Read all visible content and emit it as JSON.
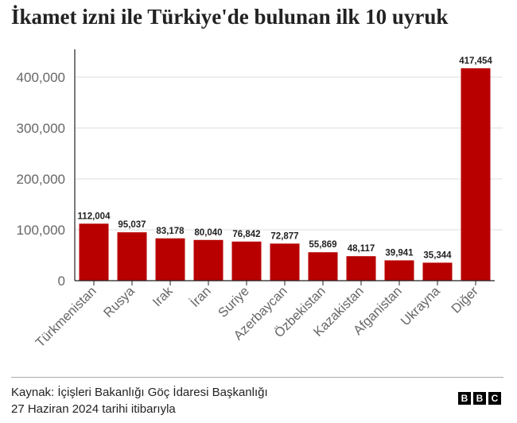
{
  "title": "İkamet izni ile Türkiye'de bulunan ilk 10 uyruk",
  "chart_data": {
    "type": "bar",
    "title": "İkamet izni ile Türkiye'de bulunan ilk 10 uyruk",
    "xlabel": "",
    "ylabel": "",
    "ylim": [
      0,
      450000
    ],
    "yticks": [
      0,
      100000,
      200000,
      300000,
      400000
    ],
    "ytick_labels": [
      "0",
      "100,000",
      "200,000",
      "300,000",
      "400,000"
    ],
    "categories": [
      "Türkmenistan",
      "Rusya",
      "Irak",
      "İran",
      "Suriye",
      "Azerbaycan",
      "Özbekistan",
      "Kazakistan",
      "Afganistan",
      "Ukrayna",
      "Diğer"
    ],
    "values": [
      112004,
      95037,
      83178,
      80040,
      76842,
      72877,
      55869,
      48117,
      39941,
      35344,
      417454
    ],
    "value_labels": [
      "112,004",
      "95,037",
      "83,178",
      "80,040",
      "76,842",
      "72,877",
      "55,869",
      "48,117",
      "39,941",
      "35,344",
      "417,454"
    ],
    "grid": true,
    "colors": {
      "bar": "#b80000",
      "grid": "#dddddd",
      "axis": "#222222",
      "tick_label": "#666666"
    }
  },
  "footer": {
    "source": "Kaynak: İçişleri Bakanlığı Göç İdaresi Başkanlığı",
    "date": "27 Haziran 2024 tarihi itibarıyla",
    "logo_letters": [
      "B",
      "B",
      "C"
    ]
  }
}
